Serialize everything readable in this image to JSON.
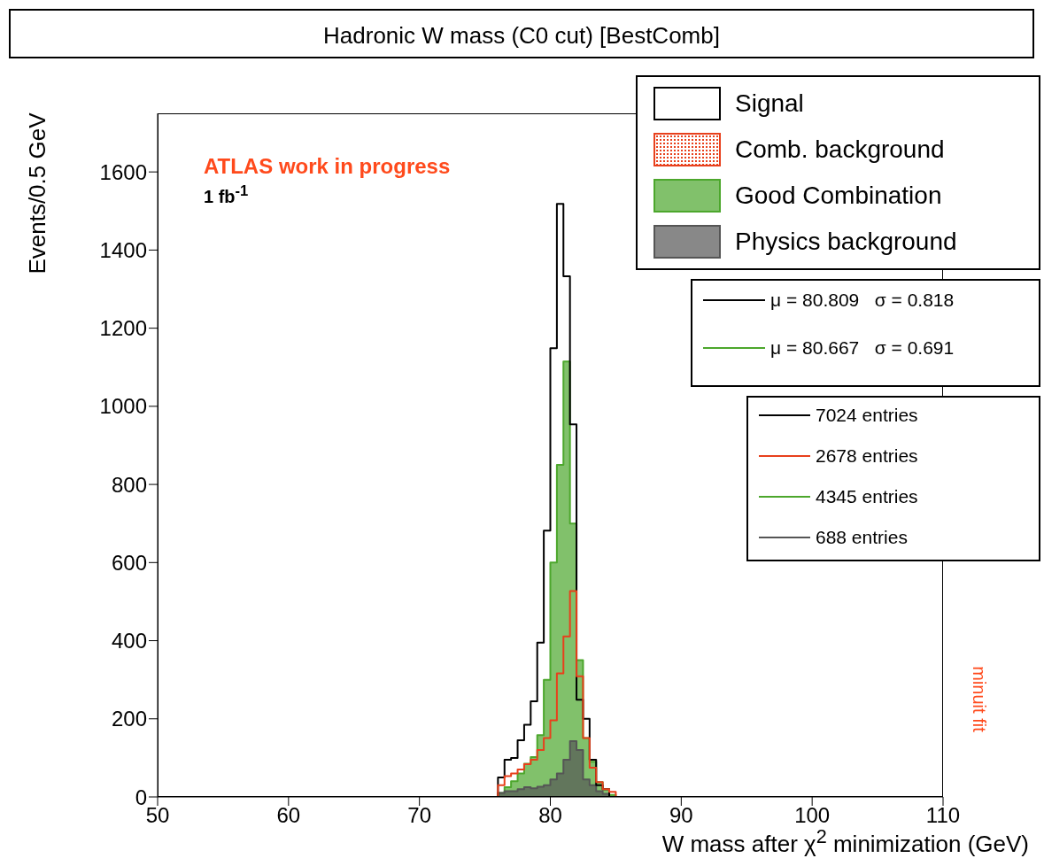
{
  "chart_data": {
    "type": "step",
    "title": "Hadronic W mass (C0 cut) [BestComb]",
    "xlabel": "W mass after χ$^{2}$ minimization (GeV)",
    "ylabel": "Events/0.5 GeV",
    "x": [
      50,
      76,
      76.5,
      77,
      77.5,
      78,
      78.5,
      79,
      79.5,
      80,
      80.5,
      81,
      81.5,
      82,
      82.5,
      83,
      83.5,
      84,
      84.5,
      85,
      110
    ],
    "series": [
      {
        "name": "Signal",
        "type": "step",
        "color": "#000000",
        "values": [
          0,
          50,
          95,
          100,
          145,
          185,
          245,
          395,
          682,
          1149,
          1518,
          1333,
          954,
          249,
          200,
          95,
          30,
          20,
          0,
          0,
          0
        ]
      },
      {
        "name": "Comb. background",
        "type": "step",
        "color": "#e8401c",
        "values": [
          0,
          30,
          53,
          60,
          70,
          84,
          95,
          120,
          151,
          196,
          316,
          411,
          527,
          309,
          151,
          75,
          38,
          20,
          13,
          0,
          null
        ]
      },
      {
        "name": "Good Combination",
        "type": "area",
        "color": "#4ca72c",
        "values": [
          0,
          10,
          25,
          40,
          60,
          85,
          102,
          158,
          300,
          600,
          850,
          1115,
          700,
          350,
          151,
          90,
          38,
          20,
          5,
          0,
          0
        ]
      },
      {
        "name": "Physics background",
        "type": "area",
        "color": "#555555",
        "values": [
          0,
          10,
          15,
          15,
          20,
          25,
          22,
          26,
          30,
          45,
          60,
          95,
          143,
          120,
          45,
          30,
          15,
          8,
          0,
          0,
          0
        ]
      }
    ],
    "xlim": [
      50,
      110
    ],
    "xticks": [
      50,
      60,
      70,
      80,
      90,
      100,
      110
    ],
    "ylim": [
      0,
      1750
    ],
    "yticks": [
      0,
      200,
      400,
      600,
      800,
      1000,
      1200,
      1400,
      1600
    ],
    "legend": "top right",
    "annotations": [
      "ATLAS work in progress",
      "1 fb$^{-1}$",
      "μ = 80.809   σ = 0.818",
      "μ = 80.667   σ = 0.691",
      "7024 entries",
      "2678 entries",
      "4345 entries",
      "688 entries",
      "minuit fit"
    ]
  }
}
